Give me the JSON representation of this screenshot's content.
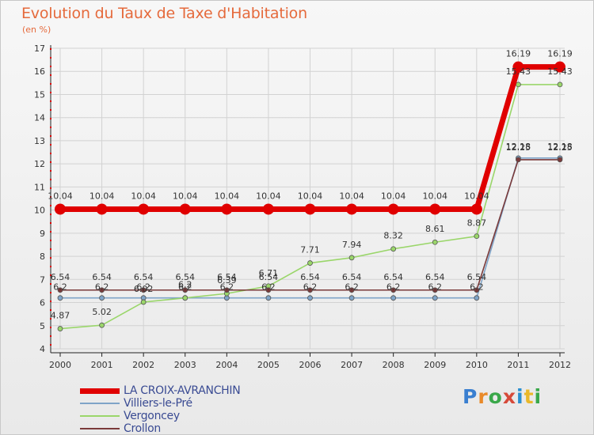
{
  "title": "Evolution du Taux de Taxe d'Habitation",
  "subtitle": "(en %)",
  "brand": {
    "text": "Proxiti",
    "letter_colors": [
      "#3a7fd0",
      "#e98a2a",
      "#3aa84a",
      "#d64a3a",
      "#2a8fd0",
      "#e9b82a",
      "#3aa84a"
    ]
  },
  "chart_data": {
    "type": "line",
    "title": "Evolution du Taux de Taxe d'Habitation",
    "ylabel": "(en %)",
    "xlabel": "",
    "categories": [
      "2000",
      "2001",
      "2002",
      "2003",
      "2004",
      "2005",
      "2006",
      "2007",
      "2008",
      "2009",
      "2010",
      "2011",
      "2012"
    ],
    "ylim": [
      4,
      17
    ],
    "yticks": [
      "4",
      "5",
      "6",
      "7",
      "8",
      "9",
      "10",
      "11",
      "12",
      "13",
      "14",
      "15",
      "16",
      "17"
    ],
    "grid": true,
    "legend_position": "bottom-left",
    "series": [
      {
        "name": "LA CROIX-AVRANCHIN",
        "color": "#e00000",
        "values": [
          10.04,
          10.04,
          10.04,
          10.04,
          10.04,
          10.04,
          10.04,
          10.04,
          10.04,
          10.04,
          10.04,
          16.19,
          16.19
        ],
        "labels": [
          "10.04",
          "10.04",
          "10.04",
          "10.04",
          "10.04",
          "10.04",
          "10.04",
          "10.04",
          "10.04",
          "10.04",
          "10.04",
          "16.19",
          "16.19"
        ]
      },
      {
        "name": "Villiers-le-Pré",
        "color": "#7fa4c8",
        "values": [
          6.2,
          6.2,
          6.2,
          6.2,
          6.2,
          6.2,
          6.2,
          6.2,
          6.2,
          6.2,
          6.2,
          12.25,
          12.25
        ],
        "labels": [
          "6.2",
          "6.2",
          "6.2",
          "6.2",
          "6.2",
          "6.2",
          "6.2",
          "6.2",
          "6.2",
          "6.2",
          "6.2",
          "12.25",
          "12.25"
        ]
      },
      {
        "name": "Vergoncey",
        "color": "#9ad66a",
        "values": [
          4.87,
          5.02,
          6.02,
          6.2,
          6.39,
          6.71,
          7.71,
          7.94,
          8.32,
          8.61,
          8.87,
          15.43,
          15.43
        ],
        "labels": [
          "4.87",
          "5.02",
          "6.02",
          "6.2",
          "6.39",
          "6.71",
          "7.71",
          "7.94",
          "8.32",
          "8.61",
          "8.87",
          "15.43",
          "15.43"
        ]
      },
      {
        "name": "Crollon",
        "color": "#7a3a3a",
        "values": [
          6.54,
          6.54,
          6.54,
          6.54,
          6.54,
          6.54,
          6.54,
          6.54,
          6.54,
          6.54,
          6.54,
          12.18,
          12.18
        ],
        "labels": [
          "6.54",
          "6.54",
          "6.54",
          "6.54",
          "6.54",
          "6.54",
          "6.54",
          "6.54",
          "6.54",
          "6.54",
          "6.54",
          "12.18",
          "12.18"
        ]
      }
    ]
  }
}
